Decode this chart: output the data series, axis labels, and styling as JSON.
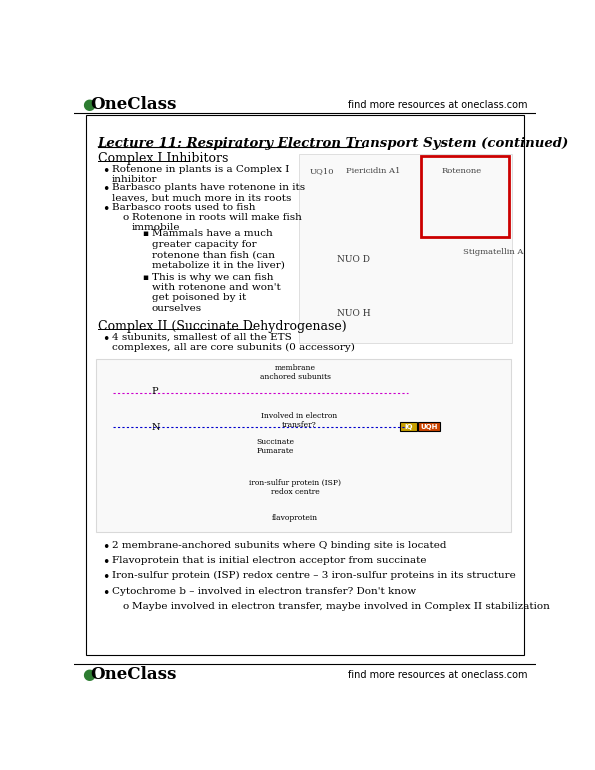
{
  "bg_color": "#ffffff",
  "header_text": "OneClass",
  "header_right": "find more resources at oneclass.com",
  "footer_text": "OneClass",
  "footer_right": "find more resources at oneclass.com",
  "title": "Lecture 11: Respiratory Electron Transport System (continued)",
  "section1": "Complex I Inhibitors",
  "section2": "Complex II (Succinate Dehydrogenase)",
  "bullet1_s1": "Rotenone in plants is a Complex I\ninhibitor",
  "bullet2_s1": "Barbasco plants have rotenone in its\nleaves, but much more in its roots",
  "bullet3_s1": "Barbasco roots used to fish",
  "sub1_s1": "Rotenone in roots will make fish\nimmobile",
  "subsub1_s1": "Mammals have a much\ngreater capacity for\nrotenone than fish (can\nmetabolize it in the liver)",
  "subsub2_s1": "This is why we can fish\nwith rotenone and won't\nget poisoned by it\nourselves",
  "bullet1_s2": "4 subunits, smallest of all the ETS\ncomplexes, all are core subunits (0 accessory)",
  "img_label1": "membrane\nanchored subunits",
  "img_label2": "Involved in electron\ntransfer?",
  "img_label3": "iron-sulfur protein (ISP)\nredox centre",
  "img_label4": "flavoprotein",
  "bottom_bullets": [
    "2 membrane-anchored subunits where Q binding site is located",
    "Flavoprotein that is initial electron acceptor from succinate",
    "Iron-sulfur protein (ISP) redox centre – 3 iron-sulfur proteins in its structure",
    "Cytochrome b – involved in electron transfer? Don't know"
  ],
  "sub_bottom": "Maybe involved in electron transfer, maybe involved in Complex II stabilization",
  "green_color": "#2e7d32",
  "red_color": "#cc0000",
  "pink_dot_color": "#cc00cc",
  "blue_dot_color": "#0000cc",
  "iq_color": "#c8a000",
  "uqh_color": "#cc4400"
}
